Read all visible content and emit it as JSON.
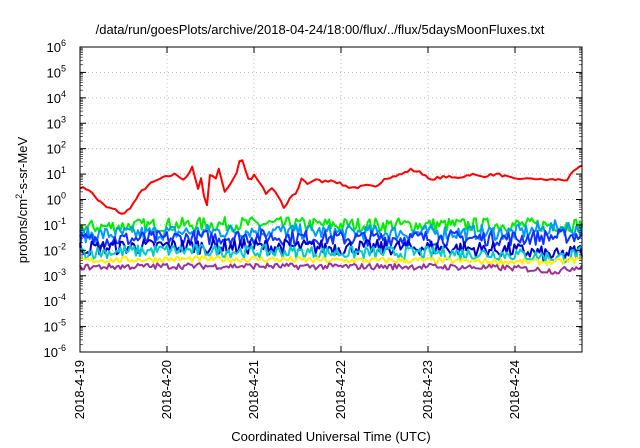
{
  "chart_data": {
    "type": "line",
    "title": "/data/run/goesPlots/archive/2018-04-24/18:00/flux/../flux/5daysMoonFluxes.txt",
    "xlabel": "Coordinated Universal Time (UTC)",
    "ylabel_parts": [
      "protons/cm",
      "2",
      "-s-sr-MeV"
    ],
    "yscale": "log",
    "ylim_exp": [
      -6,
      6
    ],
    "y_ticks": [
      {
        "base": "10",
        "exp": "-6"
      },
      {
        "base": "10",
        "exp": "-5"
      },
      {
        "base": "10",
        "exp": "-4"
      },
      {
        "base": "10",
        "exp": "-3"
      },
      {
        "base": "10",
        "exp": "-2"
      },
      {
        "base": "10",
        "exp": "-1"
      },
      {
        "base": "10",
        "exp": "0"
      },
      {
        "base": "10",
        "exp": "1"
      },
      {
        "base": "10",
        "exp": "2"
      },
      {
        "base": "10",
        "exp": "3"
      },
      {
        "base": "10",
        "exp": "4"
      },
      {
        "base": "10",
        "exp": "5"
      },
      {
        "base": "10",
        "exp": "6"
      }
    ],
    "x_ticks": [
      "2018-4-19",
      "2018-4-20",
      "2018-4-21",
      "2018-4-22",
      "2018-4-23",
      "2018-4-24"
    ],
    "xlim_days": [
      0,
      5.77
    ],
    "grid": true,
    "series": [
      {
        "color": "#ff0000",
        "width": 2,
        "noise": 0.05,
        "points": [
          [
            0,
            3
          ],
          [
            0.1,
            2.5
          ],
          [
            0.2,
            1
          ],
          [
            0.3,
            0.5
          ],
          [
            0.4,
            0.4
          ],
          [
            0.5,
            0.25
          ],
          [
            0.6,
            0.6
          ],
          [
            0.7,
            2
          ],
          [
            0.8,
            4
          ],
          [
            0.9,
            6
          ],
          [
            1.0,
            8
          ],
          [
            1.1,
            10
          ],
          [
            1.2,
            6
          ],
          [
            1.3,
            20
          ],
          [
            1.35,
            2
          ],
          [
            1.4,
            8
          ],
          [
            1.45,
            0.3
          ],
          [
            1.5,
            15
          ],
          [
            1.55,
            5
          ],
          [
            1.6,
            20
          ],
          [
            1.65,
            2
          ],
          [
            1.7,
            3
          ],
          [
            1.8,
            10
          ],
          [
            1.85,
            60
          ],
          [
            1.9,
            15
          ],
          [
            1.95,
            5
          ],
          [
            2.0,
            10
          ],
          [
            2.1,
            3
          ],
          [
            2.15,
            1.5
          ],
          [
            2.2,
            3
          ],
          [
            2.3,
            1
          ],
          [
            2.35,
            0.4
          ],
          [
            2.4,
            1
          ],
          [
            2.5,
            2
          ],
          [
            2.55,
            8
          ],
          [
            2.6,
            4
          ],
          [
            2.7,
            6
          ],
          [
            2.8,
            5
          ],
          [
            2.9,
            6
          ],
          [
            3.0,
            4
          ],
          [
            3.1,
            3
          ],
          [
            3.2,
            3
          ],
          [
            3.3,
            3.5
          ],
          [
            3.4,
            3
          ],
          [
            3.5,
            7
          ],
          [
            3.6,
            8
          ],
          [
            3.7,
            10
          ],
          [
            3.8,
            15
          ],
          [
            3.9,
            12
          ],
          [
            4.0,
            8
          ],
          [
            4.05,
            5
          ],
          [
            4.1,
            7
          ],
          [
            4.2,
            8
          ],
          [
            4.3,
            7
          ],
          [
            4.4,
            8
          ],
          [
            4.5,
            10
          ],
          [
            4.6,
            8
          ],
          [
            4.7,
            9
          ],
          [
            4.8,
            10
          ],
          [
            4.9,
            8
          ],
          [
            5.0,
            6
          ],
          [
            5.1,
            7
          ],
          [
            5.15,
            6
          ],
          [
            5.2,
            7
          ],
          [
            5.3,
            6
          ],
          [
            5.4,
            6
          ],
          [
            5.5,
            6
          ],
          [
            5.6,
            6
          ],
          [
            5.65,
            10
          ],
          [
            5.7,
            15
          ],
          [
            5.77,
            20
          ]
        ]
      },
      {
        "color": "#00ee00",
        "width": 2,
        "noise": 0.28,
        "points": [
          [
            0,
            0.08
          ],
          [
            1.0,
            0.1
          ],
          [
            2.0,
            0.11
          ],
          [
            3.0,
            0.1
          ],
          [
            4.0,
            0.1
          ],
          [
            5.0,
            0.1
          ],
          [
            5.5,
            0.1
          ],
          [
            5.77,
            0.1
          ]
        ]
      },
      {
        "color": "#0099ff",
        "width": 2,
        "noise": 0.3,
        "points": [
          [
            0,
            0.04
          ],
          [
            1.0,
            0.05
          ],
          [
            2.0,
            0.06
          ],
          [
            3.0,
            0.05
          ],
          [
            4.0,
            0.05
          ],
          [
            5.0,
            0.05
          ],
          [
            5.5,
            0.08
          ],
          [
            5.77,
            0.07
          ]
        ]
      },
      {
        "color": "#1133ff",
        "width": 2,
        "noise": 0.3,
        "points": [
          [
            0,
            0.025
          ],
          [
            1.0,
            0.03
          ],
          [
            2.0,
            0.035
          ],
          [
            3.0,
            0.03
          ],
          [
            4.0,
            0.03
          ],
          [
            5.0,
            0.03
          ],
          [
            5.5,
            0.035
          ],
          [
            5.77,
            0.04
          ]
        ]
      },
      {
        "color": "#0000cc",
        "width": 2,
        "noise": 0.3,
        "points": [
          [
            0,
            0.012
          ],
          [
            1.0,
            0.015
          ],
          [
            2.0,
            0.014
          ],
          [
            3.0,
            0.013
          ],
          [
            4.0,
            0.013
          ],
          [
            5.0,
            0.01
          ],
          [
            5.5,
            0.006
          ],
          [
            5.77,
            0.01
          ]
        ]
      },
      {
        "color": "#00cccc",
        "width": 2,
        "noise": 0.25,
        "points": [
          [
            0,
            0.008
          ],
          [
            1.0,
            0.01
          ],
          [
            2.0,
            0.009
          ],
          [
            3.0,
            0.008
          ],
          [
            4.0,
            0.008
          ],
          [
            5.0,
            0.007
          ],
          [
            5.5,
            0.005
          ],
          [
            5.77,
            0.008
          ]
        ]
      },
      {
        "color": "#ffee00",
        "width": 2,
        "noise": 0.12,
        "points": [
          [
            0,
            0.004
          ],
          [
            1.0,
            0.0045
          ],
          [
            2.0,
            0.0045
          ],
          [
            3.0,
            0.004
          ],
          [
            4.0,
            0.004
          ],
          [
            5.0,
            0.0035
          ],
          [
            5.5,
            0.0035
          ],
          [
            5.77,
            0.0045
          ]
        ]
      },
      {
        "color": "#993399",
        "width": 2,
        "noise": 0.12,
        "points": [
          [
            0,
            0.0022
          ],
          [
            1.0,
            0.0024
          ],
          [
            2.0,
            0.0024
          ],
          [
            3.0,
            0.0023
          ],
          [
            4.0,
            0.0023
          ],
          [
            5.0,
            0.002
          ],
          [
            5.5,
            0.0015
          ],
          [
            5.77,
            0.0025
          ]
        ]
      }
    ]
  }
}
